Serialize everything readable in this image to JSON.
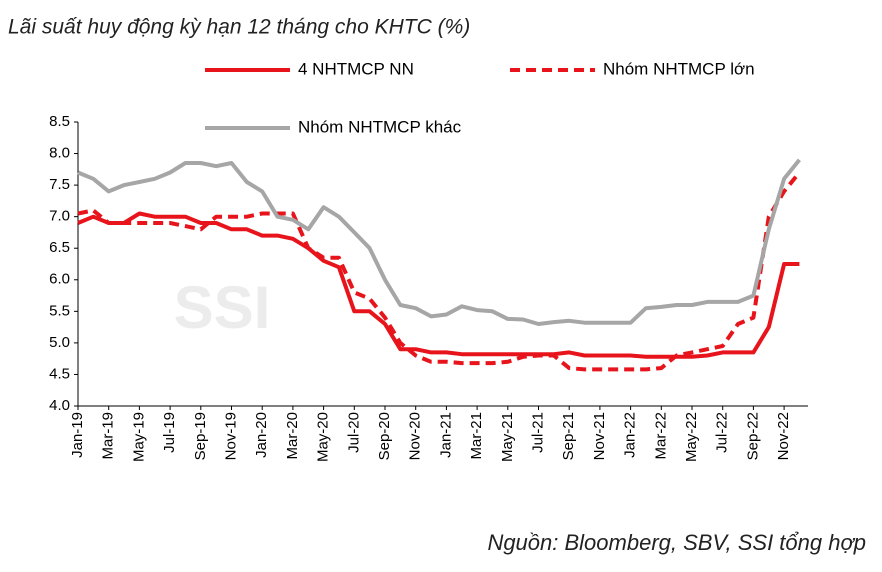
{
  "chart_data": {
    "type": "line",
    "title": "Lãi suất huy động kỳ hạn 12 tháng cho KHTC (%)",
    "watermark": "SSI",
    "source": "Nguồn:  Bloomberg, SBV, SSI tổng hợp",
    "categories": [
      "Jan-19",
      null,
      "Mar-19",
      null,
      "May-19",
      null,
      "Jul-19",
      null,
      "Sep-19",
      null,
      "Nov-19",
      null,
      "Jan-20",
      null,
      "Mar-20",
      null,
      "May-20",
      null,
      "Jul-20",
      null,
      "Sep-20",
      null,
      "Nov-20",
      null,
      "Jan-21",
      null,
      "Mar-21",
      null,
      "May-21",
      null,
      "Jul-21",
      null,
      "Sep-21",
      null,
      "Nov-21",
      null,
      "Jan-22",
      null,
      "Mar-22",
      null,
      "May-22",
      null,
      "Jul-22",
      null,
      "Sep-22",
      null,
      "Nov-22",
      null
    ],
    "series": [
      {
        "name": "4 NHTMCP NN",
        "color": "#e8141c",
        "dash": false,
        "values": [
          6.9,
          7.0,
          6.9,
          6.9,
          7.05,
          7.0,
          7.0,
          7.0,
          6.9,
          6.9,
          6.8,
          6.8,
          6.7,
          6.7,
          6.65,
          6.5,
          6.3,
          6.2,
          5.5,
          5.5,
          5.3,
          4.9,
          4.9,
          4.85,
          4.85,
          4.82,
          4.82,
          4.82,
          4.82,
          4.82,
          4.82,
          4.82,
          4.85,
          4.8,
          4.8,
          4.8,
          4.8,
          4.78,
          4.78,
          4.78,
          4.78,
          4.8,
          4.85,
          4.85,
          4.85,
          5.25,
          6.25,
          6.25
        ]
      },
      {
        "name": "Nhóm NHTMCP lớn",
        "color": "#e8141c",
        "dash": true,
        "values": [
          7.05,
          7.1,
          6.9,
          6.9,
          6.9,
          6.9,
          6.9,
          6.85,
          6.8,
          7.0,
          7.0,
          7.0,
          7.05,
          7.05,
          7.05,
          6.5,
          6.35,
          6.35,
          5.8,
          5.7,
          5.4,
          5.0,
          4.8,
          4.7,
          4.7,
          4.68,
          4.68,
          4.68,
          4.7,
          4.78,
          4.8,
          4.8,
          4.6,
          4.58,
          4.58,
          4.58,
          4.58,
          4.58,
          4.6,
          4.8,
          4.85,
          4.9,
          4.95,
          5.3,
          5.4,
          7.0,
          7.4,
          7.7
        ]
      },
      {
        "name": "Nhóm NHTMCP khác",
        "color": "#a6a6a6",
        "dash": false,
        "values": [
          7.7,
          7.6,
          7.4,
          7.5,
          7.55,
          7.6,
          7.7,
          7.85,
          7.85,
          7.8,
          7.85,
          7.55,
          7.4,
          7.0,
          6.95,
          6.8,
          7.15,
          7.0,
          6.75,
          6.5,
          6.0,
          5.6,
          5.55,
          5.42,
          5.45,
          5.58,
          5.52,
          5.5,
          5.38,
          5.37,
          5.3,
          5.33,
          5.35,
          5.32,
          5.32,
          5.32,
          5.32,
          5.55,
          5.57,
          5.6,
          5.6,
          5.65,
          5.65,
          5.65,
          5.75,
          6.8,
          7.6,
          7.9
        ]
      }
    ],
    "ylim": [
      4.0,
      8.5
    ],
    "yticks": [
      {
        "value": 4,
        "label": "4.0"
      },
      4.5,
      {
        "value": 5,
        "label": "5.0"
      },
      5.5,
      {
        "value": 6,
        "label": "6.0"
      },
      6.5,
      {
        "value": 7,
        "label": "7.0"
      },
      7.5,
      {
        "value": 8,
        "label": "8.0"
      },
      8.5
    ]
  }
}
